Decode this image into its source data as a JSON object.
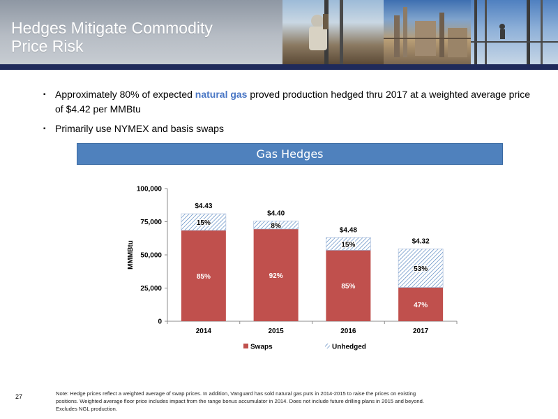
{
  "slide": {
    "title_line1": "Hedges Mitigate Commodity",
    "title_line2": "Price Risk",
    "page_number": "27"
  },
  "bullets": [
    {
      "before": "Approximately 80% of expected ",
      "highlight": "natural gas",
      "after": " proved production hedged thru 2017 at a weighted average price of $4.42 per MMBtu"
    },
    {
      "text": "Primarily use NYMEX and basis swaps"
    }
  ],
  "chart_title": "Gas Hedges",
  "footnote": "Note: Hedge prices reflect a weighted average of swap prices. In addition, Vanguard has sold natural gas puts in 2014-2015 to raise the prices on existing positions. Weighted average floor price includes impact from the range bonus accumulator in 2014. Does not include future drilling plans in 2015 and beyond. Excludes NGL production.",
  "colors": {
    "banner_bar": "#1f2a5a",
    "highlight": "#4a77c5",
    "swaps": "#c0504d",
    "unhedged_hatch": "#4f81bd",
    "title_box": "#4f81bd"
  },
  "chart_data": {
    "type": "bar",
    "stacked": true,
    "categories": [
      "2014",
      "2015",
      "2016",
      "2017"
    ],
    "ylabel": "MMMBtu",
    "ylim": [
      0,
      100000
    ],
    "yticks": [
      "0",
      "25,000",
      "50,000",
      "75,000",
      "100,000"
    ],
    "ytick_values": [
      0,
      25000,
      50000,
      75000,
      100000
    ],
    "series": [
      {
        "name": "Swaps",
        "values": [
          68500,
          69500,
          53500,
          25500
        ],
        "labels": [
          "85%",
          "92%",
          "85%",
          "47%"
        ]
      },
      {
        "name": "Unhedged",
        "values": [
          12500,
          6000,
          9500,
          29000
        ],
        "labels": [
          "15%",
          "8%",
          "15%",
          "53%"
        ]
      }
    ],
    "price_labels": [
      "$4.43",
      "$4.40",
      "$4.48",
      "$4.32"
    ],
    "legend_position": "bottom",
    "grid": false
  }
}
